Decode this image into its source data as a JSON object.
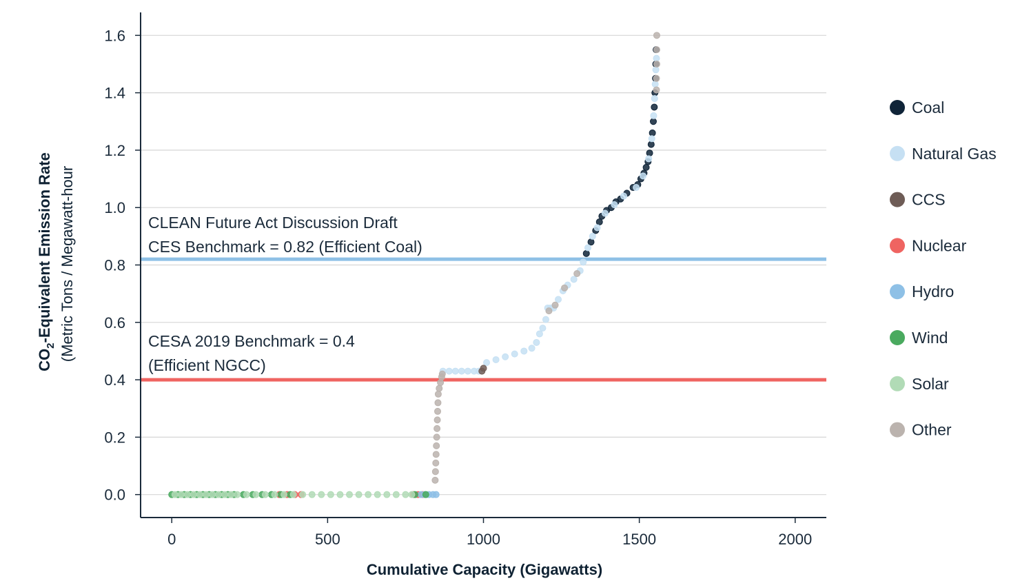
{
  "chart_data": {
    "type": "scatter",
    "title": "",
    "xlabel": "Cumulative Capacity (Gigawatts)",
    "ylabel_main": "CO",
    "ylabel_sub": "2",
    "ylabel_rest": "-Equivalent Emission Rate",
    "ylabel_units": "(Metric Tons / Megawatt-hour",
    "xlim": [
      -100,
      2100
    ],
    "ylim": [
      -0.08,
      1.68
    ],
    "x_ticks": [
      0,
      500,
      1000,
      1500,
      2000
    ],
    "x_tick_labels": [
      "0",
      "500",
      "1000",
      "1500",
      "2000"
    ],
    "y_ticks": [
      0.0,
      0.2,
      0.4,
      0.6,
      0.8,
      1.0,
      1.2,
      1.4,
      1.6
    ],
    "y_tick_labels": [
      "0.0",
      "0.2",
      "0.4",
      "0.6",
      "0.8",
      "1.0",
      "1.2",
      "1.4",
      "1.6"
    ],
    "grid": "horizontal",
    "legend_position": "right",
    "colors": {
      "Coal": "#0f2438",
      "Natural Gas": "#c6e0f3",
      "CCS": "#6e5c56",
      "Nuclear": "#ef6461",
      "Hydro": "#8ec0e6",
      "Wind": "#4aaa5f",
      "Solar": "#b1dbb6",
      "Other": "#bbb3ae"
    },
    "benchmarks": [
      {
        "value": 0.82,
        "color": "#8ec0e6",
        "label_line1": "CLEAN Future Act Discussion Draft",
        "label_line2": "CES Benchmark = 0.82 (Efficient Coal)"
      },
      {
        "value": 0.4,
        "color": "#ef6461",
        "label_line1": "CESA 2019 Benchmark = 0.4",
        "label_line2": "(Efficient NGCC)"
      }
    ],
    "series": [
      {
        "name": "Coal",
        "points": [
          [
            1330,
            0.84
          ],
          [
            1345,
            0.88
          ],
          [
            1360,
            0.92
          ],
          [
            1372,
            0.95
          ],
          [
            1380,
            0.97
          ],
          [
            1395,
            0.99
          ],
          [
            1410,
            1.0
          ],
          [
            1425,
            1.02
          ],
          [
            1440,
            1.03
          ],
          [
            1460,
            1.05
          ],
          [
            1480,
            1.07
          ],
          [
            1495,
            1.08
          ],
          [
            1505,
            1.1
          ],
          [
            1515,
            1.12
          ],
          [
            1522,
            1.14
          ],
          [
            1528,
            1.16
          ],
          [
            1533,
            1.19
          ],
          [
            1538,
            1.22
          ],
          [
            1542,
            1.26
          ],
          [
            1545,
            1.3
          ],
          [
            1548,
            1.35
          ],
          [
            1550,
            1.4
          ],
          [
            1552,
            1.45
          ],
          [
            1553,
            1.5
          ],
          [
            1554,
            1.55
          ]
        ]
      },
      {
        "name": "Natural Gas",
        "points": [
          [
            870,
            0.43
          ],
          [
            890,
            0.43
          ],
          [
            910,
            0.43
          ],
          [
            930,
            0.43
          ],
          [
            950,
            0.43
          ],
          [
            970,
            0.43
          ],
          [
            985,
            0.43
          ],
          [
            1010,
            0.46
          ],
          [
            1040,
            0.47
          ],
          [
            1070,
            0.48
          ],
          [
            1100,
            0.49
          ],
          [
            1130,
            0.5
          ],
          [
            1155,
            0.51
          ],
          [
            1170,
            0.53
          ],
          [
            1180,
            0.56
          ],
          [
            1190,
            0.58
          ],
          [
            1200,
            0.61
          ],
          [
            1206,
            0.65
          ],
          [
            1215,
            0.65
          ],
          [
            1225,
            0.65
          ],
          [
            1240,
            0.68
          ],
          [
            1255,
            0.71
          ],
          [
            1270,
            0.73
          ],
          [
            1290,
            0.75
          ],
          [
            1310,
            0.78
          ],
          [
            1320,
            0.81
          ],
          [
            1335,
            0.86
          ],
          [
            1350,
            0.9
          ],
          [
            1365,
            0.93
          ],
          [
            1390,
            0.98
          ],
          [
            1420,
            1.01
          ],
          [
            1450,
            1.04
          ],
          [
            1490,
            1.07
          ],
          [
            1512,
            1.11
          ],
          [
            1530,
            1.17
          ],
          [
            1540,
            1.24
          ],
          [
            1546,
            1.32
          ],
          [
            1549,
            1.38
          ],
          [
            1551,
            1.43
          ],
          [
            1553,
            1.48
          ],
          [
            1555,
            1.52
          ]
        ]
      },
      {
        "name": "CCS",
        "points": [
          [
            995,
            0.43
          ],
          [
            1000,
            0.44
          ]
        ]
      },
      {
        "name": "Nuclear",
        "points": [
          [
            345,
            0.0
          ],
          [
            370,
            0.0
          ],
          [
            395,
            0.0
          ],
          [
            415,
            0.0
          ],
          [
            775,
            0.0
          ],
          [
            790,
            0.0
          ],
          [
            805,
            0.0
          ]
        ]
      },
      {
        "name": "Hydro",
        "points": [
          [
            800,
            0.0
          ],
          [
            812,
            0.0
          ],
          [
            825,
            0.0
          ],
          [
            838,
            0.0
          ],
          [
            848,
            0.0
          ]
        ]
      },
      {
        "name": "Wind",
        "points": [
          [
            0,
            0.0
          ],
          [
            20,
            0.0
          ],
          [
            40,
            0.0
          ],
          [
            60,
            0.0
          ],
          [
            80,
            0.0
          ],
          [
            100,
            0.0
          ],
          [
            120,
            0.0
          ],
          [
            140,
            0.0
          ],
          [
            160,
            0.0
          ],
          [
            180,
            0.0
          ],
          [
            200,
            0.0
          ],
          [
            230,
            0.0
          ],
          [
            260,
            0.0
          ],
          [
            290,
            0.0
          ],
          [
            320,
            0.0
          ],
          [
            350,
            0.0
          ],
          [
            380,
            0.0
          ],
          [
            780,
            0.0
          ],
          [
            815,
            0.0
          ]
        ]
      },
      {
        "name": "Solar",
        "points": [
          [
            10,
            0.0
          ],
          [
            30,
            0.0
          ],
          [
            50,
            0.0
          ],
          [
            70,
            0.0
          ],
          [
            90,
            0.0
          ],
          [
            110,
            0.0
          ],
          [
            130,
            0.0
          ],
          [
            150,
            0.0
          ],
          [
            170,
            0.0
          ],
          [
            190,
            0.0
          ],
          [
            210,
            0.0
          ],
          [
            240,
            0.0
          ],
          [
            270,
            0.0
          ],
          [
            300,
            0.0
          ],
          [
            330,
            0.0
          ],
          [
            360,
            0.0
          ],
          [
            390,
            0.0
          ],
          [
            420,
            0.0
          ],
          [
            450,
            0.0
          ],
          [
            480,
            0.0
          ],
          [
            510,
            0.0
          ],
          [
            540,
            0.0
          ],
          [
            570,
            0.0
          ],
          [
            600,
            0.0
          ],
          [
            630,
            0.0
          ],
          [
            660,
            0.0
          ],
          [
            690,
            0.0
          ],
          [
            720,
            0.0
          ],
          [
            750,
            0.0
          ],
          [
            770,
            0.0
          ]
        ]
      },
      {
        "name": "Other",
        "points": [
          [
            845,
            0.05
          ],
          [
            846,
            0.08
          ],
          [
            847,
            0.11
          ],
          [
            848,
            0.14
          ],
          [
            849,
            0.17
          ],
          [
            850,
            0.2
          ],
          [
            851,
            0.23
          ],
          [
            852,
            0.26
          ],
          [
            853,
            0.29
          ],
          [
            854,
            0.32
          ],
          [
            855,
            0.35
          ],
          [
            858,
            0.37
          ],
          [
            862,
            0.39
          ],
          [
            866,
            0.41
          ],
          [
            868,
            0.42
          ],
          [
            1210,
            0.64
          ],
          [
            1230,
            0.66
          ],
          [
            1260,
            0.72
          ],
          [
            1300,
            0.77
          ],
          [
            1555,
            1.41
          ],
          [
            1555,
            1.45
          ],
          [
            1556,
            1.5
          ],
          [
            1556,
            1.55
          ],
          [
            1556,
            1.6
          ]
        ]
      }
    ],
    "legend": [
      "Coal",
      "Natural Gas",
      "CCS",
      "Nuclear",
      "Hydro",
      "Wind",
      "Solar",
      "Other"
    ]
  }
}
